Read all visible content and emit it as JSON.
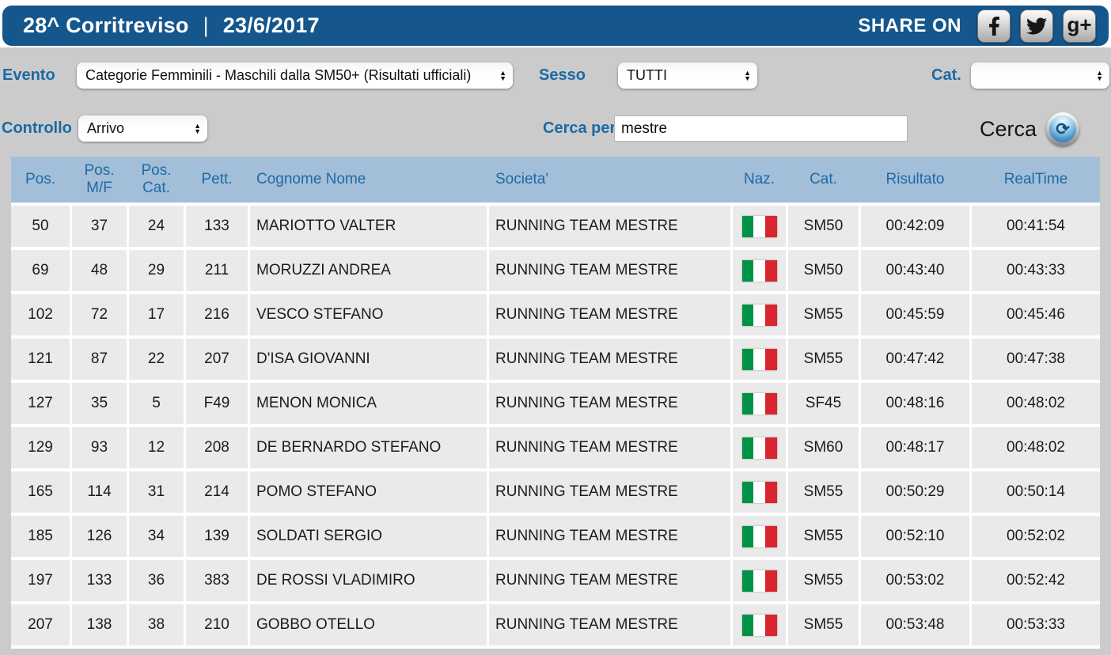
{
  "header": {
    "title": "28^ Corritreviso",
    "separator": "|",
    "date": "23/6/2017",
    "share_label": "SHARE ON",
    "social_icons": [
      "facebook-icon",
      "twitter-icon",
      "googleplus-icon"
    ]
  },
  "filters": {
    "evento_label": "Evento",
    "evento_value": "Categorie Femminili - Maschili dalla SM50+ (Risultati ufficiali)",
    "sesso_label": "Sesso",
    "sesso_value": "TUTTI",
    "cat_label": "Cat.",
    "cat_value": "",
    "controllo_label": "Controllo",
    "controllo_value": "Arrivo",
    "cerca_per_label": "Cerca per",
    "search_value": "mestre",
    "cerca_button_label": "Cerca"
  },
  "table": {
    "columns": [
      {
        "lines": [
          "Pos."
        ]
      },
      {
        "lines": [
          "Pos.",
          "M/F"
        ]
      },
      {
        "lines": [
          "Pos.",
          "Cat."
        ]
      },
      {
        "lines": [
          "Pett."
        ]
      },
      {
        "lines": [
          "Cognome Nome"
        ]
      },
      {
        "lines": [
          "Societa'"
        ]
      },
      {
        "lines": [
          "Naz."
        ]
      },
      {
        "lines": [
          "Cat."
        ]
      },
      {
        "lines": [
          "Risultato"
        ]
      },
      {
        "lines": [
          "RealTime"
        ]
      }
    ],
    "rows": [
      {
        "pos": "50",
        "pos_mf": "37",
        "pos_cat": "24",
        "pett": "133",
        "nome": "MARIOTTO VALTER",
        "societa": "RUNNING TEAM MESTRE",
        "naz": "ITA",
        "cat": "SM50",
        "risultato": "00:42:09",
        "realtime": "00:41:54"
      },
      {
        "pos": "69",
        "pos_mf": "48",
        "pos_cat": "29",
        "pett": "211",
        "nome": "MORUZZI ANDREA",
        "societa": "RUNNING TEAM MESTRE",
        "naz": "ITA",
        "cat": "SM50",
        "risultato": "00:43:40",
        "realtime": "00:43:33"
      },
      {
        "pos": "102",
        "pos_mf": "72",
        "pos_cat": "17",
        "pett": "216",
        "nome": "VESCO STEFANO",
        "societa": "RUNNING TEAM MESTRE",
        "naz": "ITA",
        "cat": "SM55",
        "risultato": "00:45:59",
        "realtime": "00:45:46"
      },
      {
        "pos": "121",
        "pos_mf": "87",
        "pos_cat": "22",
        "pett": "207",
        "nome": "D'ISA GIOVANNI",
        "societa": "RUNNING TEAM MESTRE",
        "naz": "ITA",
        "cat": "SM55",
        "risultato": "00:47:42",
        "realtime": "00:47:38"
      },
      {
        "pos": "127",
        "pos_mf": "35",
        "pos_cat": "5",
        "pett": "F49",
        "nome": "MENON MONICA",
        "societa": "RUNNING TEAM MESTRE",
        "naz": "ITA",
        "cat": "SF45",
        "risultato": "00:48:16",
        "realtime": "00:48:02"
      },
      {
        "pos": "129",
        "pos_mf": "93",
        "pos_cat": "12",
        "pett": "208",
        "nome": "DE BERNARDO STEFANO",
        "societa": "RUNNING TEAM MESTRE",
        "naz": "ITA",
        "cat": "SM60",
        "risultato": "00:48:17",
        "realtime": "00:48:02"
      },
      {
        "pos": "165",
        "pos_mf": "114",
        "pos_cat": "31",
        "pett": "214",
        "nome": "POMO STEFANO",
        "societa": "RUNNING TEAM MESTRE",
        "naz": "ITA",
        "cat": "SM55",
        "risultato": "00:50:29",
        "realtime": "00:50:14"
      },
      {
        "pos": "185",
        "pos_mf": "126",
        "pos_cat": "34",
        "pett": "139",
        "nome": "SOLDATI SERGIO",
        "societa": "RUNNING TEAM MESTRE",
        "naz": "ITA",
        "cat": "SM55",
        "risultato": "00:52:10",
        "realtime": "00:52:02"
      },
      {
        "pos": "197",
        "pos_mf": "133",
        "pos_cat": "36",
        "pett": "383",
        "nome": "DE ROSSI VLADIMIRO",
        "societa": "RUNNING TEAM MESTRE",
        "naz": "ITA",
        "cat": "SM55",
        "risultato": "00:53:02",
        "realtime": "00:52:42"
      },
      {
        "pos": "207",
        "pos_mf": "138",
        "pos_cat": "38",
        "pett": "210",
        "nome": "GOBBO OTELLO",
        "societa": "RUNNING TEAM MESTRE",
        "naz": "ITA",
        "cat": "SM55",
        "risultato": "00:53:48",
        "realtime": "00:53:33"
      }
    ]
  },
  "colors": {
    "topbar_blue": "#15568c",
    "accent_blue": "#1b6aa5",
    "table_header_bg": "#a3bed8",
    "row_bg": "#eaeaea",
    "page_bg": "#cbcbcb",
    "flag_green": "#009246",
    "flag_white": "#ffffff",
    "flag_red": "#d8252f"
  }
}
